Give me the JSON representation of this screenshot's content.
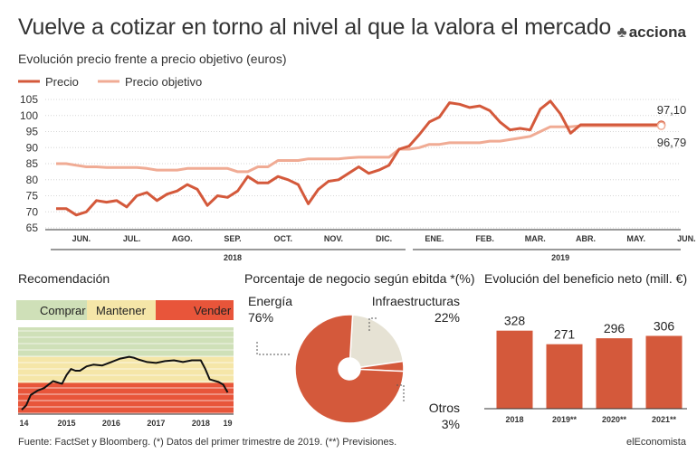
{
  "header": {
    "title": "Vuelve a cotizar en torno al nivel al que la valora el mercado",
    "subtitle": "Evolución precio frente a precio objetivo (euros)",
    "logo_text": "acciona",
    "logo_icon": "tree-icon"
  },
  "footer": {
    "source": "Fuente: FactSet y Bloomberg. (*) Datos del primer trimestre de 2019. (**) Previsiones.",
    "brand": "elEconomista"
  },
  "colors": {
    "precio": "#d4593b",
    "objetivo": "#f0ab94",
    "comprar": "#cfe0b8",
    "mantener": "#f5e6a8",
    "vender": "#e8553a",
    "pie_energia": "#d4593b",
    "pie_infra": "#e6e2d4",
    "bar": "#d4593b"
  },
  "chart_data": [
    {
      "type": "line",
      "legend": [
        "Precio",
        "Precio objetivo"
      ],
      "ylim": [
        65,
        105
      ],
      "yticks": [
        65,
        70,
        75,
        80,
        85,
        90,
        95,
        100,
        105
      ],
      "months": [
        "JUN.",
        "JUL.",
        "AGO.",
        "SEP.",
        "OCT.",
        "NOV.",
        "DIC.",
        "ENE.",
        "FEB.",
        "MAR.",
        "ABR.",
        "MAY.",
        "JUN."
      ],
      "years": [
        "2018",
        "2019"
      ],
      "end_labels": [
        "97,10",
        "96,79"
      ],
      "series": [
        {
          "name": "Precio",
          "x": [
            0,
            0.2,
            0.4,
            0.6,
            0.8,
            1.0,
            1.2,
            1.4,
            1.6,
            1.8,
            2.0,
            2.2,
            2.4,
            2.6,
            2.8,
            3.0,
            3.2,
            3.4,
            3.6,
            3.8,
            4.0,
            4.2,
            4.4,
            4.6,
            4.8,
            5.0,
            5.2,
            5.4,
            5.6,
            5.8,
            6.0,
            6.2,
            6.4,
            6.6,
            6.8,
            7.0,
            7.2,
            7.4,
            7.6,
            7.8,
            8.0,
            8.2,
            8.4,
            8.6,
            8.8,
            9.0,
            9.2,
            9.4,
            9.6,
            9.8,
            10.0,
            10.2,
            10.4,
            10.6,
            10.8,
            11.0,
            11.2,
            11.4,
            11.6,
            11.8,
            12.0
          ],
          "values": [
            71,
            71,
            69,
            70,
            73.5,
            73,
            73.5,
            71.5,
            75,
            76,
            73.5,
            75.5,
            76.5,
            78.5,
            77,
            72,
            75,
            74.5,
            76.5,
            81,
            79,
            79,
            81,
            80,
            78.5,
            72.5,
            77,
            79.5,
            80,
            82,
            84,
            82,
            83,
            84.5,
            89.5,
            90.5,
            94,
            98,
            99.5,
            104,
            103.5,
            102.5,
            103,
            101.5,
            98,
            95.5,
            96,
            95.5,
            102,
            104.5,
            100.5,
            94.5,
            97.1,
            97.1,
            97.1,
            97.1,
            97.1,
            97.1,
            97.1,
            97.1,
            97.1
          ]
        },
        {
          "name": "Precio objetivo",
          "x": [
            0,
            0.2,
            0.4,
            0.6,
            0.8,
            1.0,
            1.2,
            1.4,
            1.6,
            1.8,
            2.0,
            2.2,
            2.4,
            2.6,
            2.8,
            3.0,
            3.2,
            3.4,
            3.6,
            3.8,
            4.0,
            4.2,
            4.4,
            4.6,
            4.8,
            5.0,
            5.2,
            5.4,
            5.6,
            5.8,
            6.0,
            6.2,
            6.4,
            6.6,
            6.8,
            7.0,
            7.2,
            7.4,
            7.6,
            7.8,
            8.0,
            8.2,
            8.4,
            8.6,
            8.8,
            9.0,
            9.2,
            9.4,
            9.6,
            9.8,
            10.0,
            10.2,
            10.4,
            10.6,
            10.8,
            11.0,
            11.2,
            11.4,
            11.6,
            11.8,
            12.0
          ],
          "values": [
            85,
            85,
            84.5,
            84,
            84,
            83.8,
            83.8,
            83.8,
            83.8,
            83.5,
            83,
            83,
            83,
            83.5,
            83.5,
            83.5,
            83.5,
            83.5,
            82.5,
            82.5,
            84,
            84,
            86,
            86,
            86,
            86.5,
            86.5,
            86.5,
            86.5,
            86.8,
            87,
            87,
            87,
            87,
            89.5,
            89.5,
            90,
            91,
            91,
            91.5,
            91.5,
            91.5,
            91.5,
            92,
            92,
            92.5,
            93,
            93.5,
            95,
            96.5,
            96.5,
            96.5,
            96.79,
            96.79,
            96.79,
            96.79,
            96.79,
            96.79,
            96.79,
            96.79,
            96.79
          ]
        }
      ]
    },
    {
      "type": "line",
      "title": "Recomendación",
      "legend": [
        "Comprar",
        "Mantener",
        "Vender"
      ],
      "xticks": [
        "14",
        "2015",
        "2016",
        "2017",
        "2018",
        "19"
      ],
      "x": [
        0,
        0.1,
        0.2,
        0.35,
        0.5,
        0.7,
        0.9,
        1.0,
        1.1,
        1.2,
        1.3,
        1.45,
        1.6,
        1.8,
        2.0,
        2.2,
        2.4,
        2.5,
        2.6,
        2.8,
        3.0,
        3.2,
        3.4,
        3.6,
        3.8,
        4.0,
        4.1,
        4.2,
        4.4,
        4.5,
        4.6
      ],
      "values": [
        0.05,
        0.1,
        0.22,
        0.27,
        0.3,
        0.38,
        0.35,
        0.45,
        0.52,
        0.5,
        0.5,
        0.55,
        0.57,
        0.56,
        0.6,
        0.64,
        0.66,
        0.65,
        0.63,
        0.6,
        0.59,
        0.61,
        0.62,
        0.6,
        0.62,
        0.62,
        0.52,
        0.4,
        0.37,
        0.34,
        0.25
      ]
    },
    {
      "type": "pie",
      "title": "Porcentaje de negocio según ebitda *(%)",
      "slices": [
        {
          "label": "Energía",
          "value": 76,
          "display": "76%"
        },
        {
          "label": "Infraestructuras",
          "value": 22,
          "display": "22%"
        },
        {
          "label": "Otros",
          "value": 3,
          "display": "3%"
        }
      ]
    },
    {
      "type": "bar",
      "title": "Evolución del beneficio neto (mill. €)",
      "categories": [
        "2018",
        "2019**",
        "2020**",
        "2021**"
      ],
      "values": [
        328,
        271,
        296,
        306
      ],
      "ylim": [
        0,
        380
      ]
    }
  ]
}
